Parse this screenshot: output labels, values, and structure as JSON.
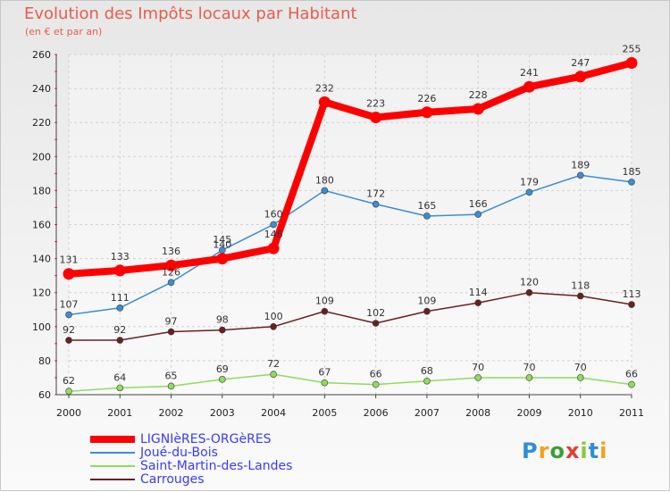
{
  "header": {
    "title": "Evolution des Impôts locaux par Habitant",
    "subtitle": "(en € et par an)"
  },
  "logo": {
    "letters": [
      "P",
      "r",
      "o",
      "x",
      "i",
      "t",
      "i"
    ],
    "colors": [
      "#2e8fd6",
      "#f2a11b",
      "#3a9f3a",
      "#e23d2e",
      "#8cc63f",
      "#2e8fd6",
      "#f2a11b"
    ]
  },
  "chart_data": {
    "type": "line",
    "x": [
      "2000",
      "2001",
      "2002",
      "2003",
      "2004",
      "2005",
      "2006",
      "2007",
      "2008",
      "2009",
      "2010",
      "2011"
    ],
    "ylim": [
      60,
      260
    ],
    "yticks": [
      60,
      80,
      100,
      120,
      140,
      160,
      180,
      200,
      220,
      240,
      260
    ],
    "grid": true,
    "legend_position": "bottom-left",
    "series": [
      {
        "name": "LIGNIèRES-ORGèRES",
        "color": "#ff0000",
        "values": [
          131,
          133,
          136,
          140,
          146,
          232,
          223,
          226,
          228,
          241,
          247,
          255
        ]
      },
      {
        "name": "Joué-du-Bois",
        "color": "#3b8ed4",
        "values": [
          107,
          111,
          126,
          145,
          160,
          180,
          172,
          165,
          166,
          179,
          189,
          185
        ]
      },
      {
        "name": "Saint-Martin-des-Landes",
        "color": "#8fdc5c",
        "values": [
          62,
          64,
          65,
          69,
          72,
          67,
          66,
          68,
          70,
          70,
          70,
          66
        ]
      },
      {
        "name": "Carrouges",
        "color": "#6b1f22",
        "values": [
          92,
          92,
          97,
          98,
          100,
          109,
          102,
          109,
          114,
          120,
          118,
          113
        ]
      }
    ]
  }
}
